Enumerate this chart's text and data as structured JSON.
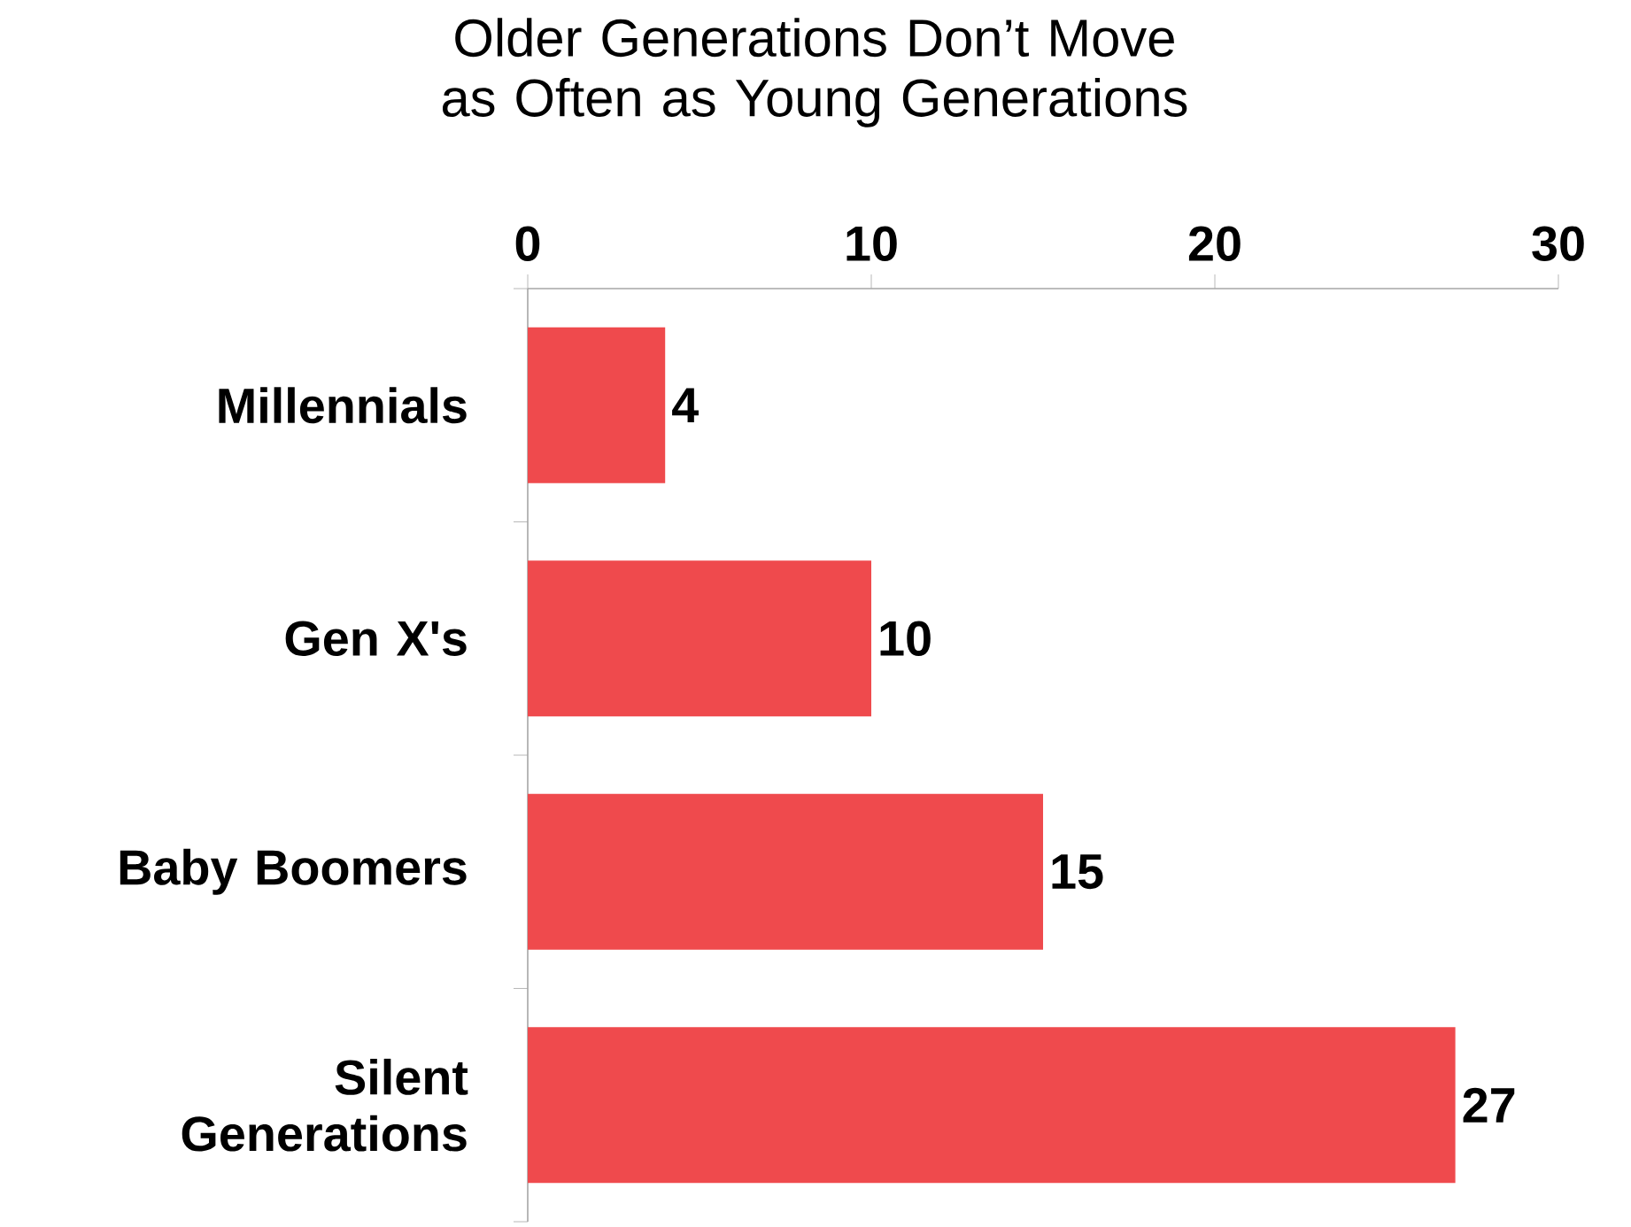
{
  "chart_data": {
    "type": "bar",
    "orientation": "horizontal",
    "title": "Older Generations Don’t Move as Often as Young Generations",
    "categories": [
      "Millennials",
      "Gen X's",
      "Baby Boomers",
      "Silent Generations"
    ],
    "values": [
      4,
      10,
      15,
      27
    ],
    "color": "#ef4a4d",
    "xlim": [
      0,
      30
    ],
    "xticks": [
      0,
      10,
      20,
      30
    ],
    "grid": false,
    "data_labels": true
  }
}
